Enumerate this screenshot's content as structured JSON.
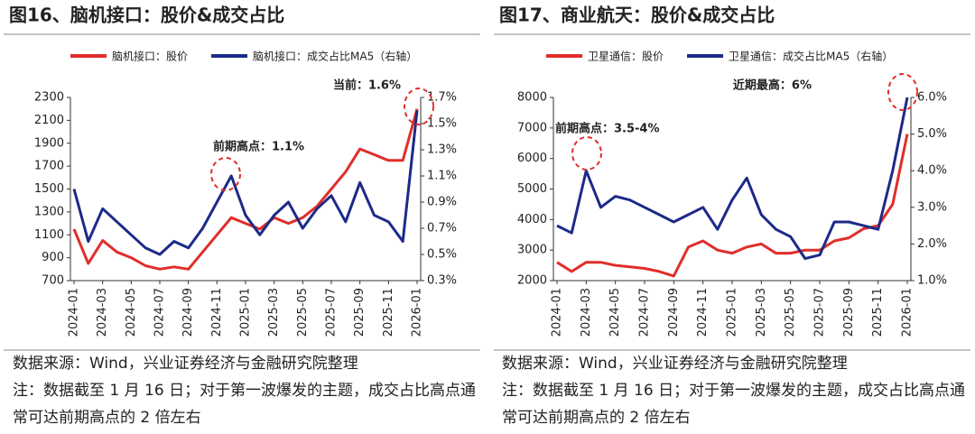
{
  "chart_data": [
    {
      "type": "line",
      "title": "图16、脑机接口：股价&成交占比",
      "x": [
        "2024-01",
        "2024-02",
        "2024-03",
        "2024-04",
        "2024-05",
        "2024-06",
        "2024-07",
        "2024-08",
        "2024-09",
        "2024-10",
        "2024-11",
        "2024-12",
        "2025-01",
        "2025-02",
        "2025-03",
        "2025-04",
        "2025-05",
        "2025-06",
        "2025-07",
        "2025-08",
        "2025-09",
        "2025-10",
        "2025-11",
        "2025-12",
        "2026-01"
      ],
      "xticks": [
        "2024-01",
        "2024-03",
        "2024-05",
        "2024-07",
        "2024-09",
        "2024-11",
        "2025-01",
        "2025-03",
        "2025-05",
        "2025-07",
        "2025-09",
        "2025-11",
        "2026-01"
      ],
      "series": [
        {
          "name": "脑机接口：股价",
          "color": "#e02e2a",
          "values": [
            1150,
            850,
            1050,
            950,
            900,
            830,
            800,
            820,
            800,
            950,
            1100,
            1250,
            1200,
            1150,
            1250,
            1200,
            1250,
            1350,
            1500,
            1650,
            1850,
            1800,
            1750,
            1750,
            2200
          ]
        },
        {
          "name": "脑机接口：成交占比MA5（右轴）",
          "color": "#1c2a88",
          "axis": "y2",
          "values": [
            1.0,
            0.6,
            0.85,
            0.75,
            0.65,
            0.55,
            0.5,
            0.6,
            0.55,
            0.7,
            0.9,
            1.1,
            0.8,
            0.65,
            0.8,
            0.9,
            0.7,
            0.85,
            0.95,
            0.75,
            1.05,
            0.8,
            0.75,
            0.6,
            1.6
          ]
        }
      ],
      "ylim": [
        700,
        2300
      ],
      "yticks": [
        700,
        900,
        1100,
        1300,
        1500,
        1700,
        1900,
        2100,
        2300
      ],
      "y2lim": [
        0.3,
        1.7
      ],
      "y2ticks": [
        {
          "value": 0.3,
          "label": "0.3%"
        },
        {
          "value": 0.5,
          "label": "0.5%"
        },
        {
          "value": 0.7,
          "label": "0.7%"
        },
        {
          "value": 0.9,
          "label": "0.9%"
        },
        {
          "value": 1.1,
          "label": "1.1%"
        },
        {
          "value": 1.3,
          "label": "1.3%"
        },
        {
          "value": 1.5,
          "label": "1.5%"
        },
        {
          "value": 1.7,
          "label": "1.7%"
        }
      ],
      "annotations": [
        "前期高点：1.1%",
        "当前：1.6%"
      ],
      "source": "数据来源：Wind，兴业证券经济与金融研究院整理",
      "note": "注：数据截至 1 月 16 日；对于第一波爆发的主题，成交占比高点通常可达前期高点的 2 倍左右"
    },
    {
      "type": "line",
      "title": "图17、商业航天：股价&成交占比",
      "x": [
        "2024-01",
        "2024-02",
        "2024-03",
        "2024-04",
        "2024-05",
        "2024-06",
        "2024-07",
        "2024-08",
        "2024-09",
        "2024-10",
        "2024-11",
        "2024-12",
        "2025-01",
        "2025-02",
        "2025-03",
        "2025-04",
        "2025-05",
        "2025-06",
        "2025-07",
        "2025-08",
        "2025-09",
        "2025-10",
        "2025-11",
        "2025-12",
        "2026-01"
      ],
      "xticks": [
        "2024-01",
        "2024-03",
        "2024-05",
        "2024-07",
        "2024-09",
        "2024-11",
        "2025-01",
        "2025-03",
        "2025-05",
        "2025-07",
        "2025-09",
        "2025-11",
        "2026-01"
      ],
      "series": [
        {
          "name": "卫星通信：股价",
          "color": "#e02e2a",
          "values": [
            2600,
            2300,
            2600,
            2600,
            2500,
            2450,
            2400,
            2300,
            2150,
            3100,
            3300,
            3000,
            2900,
            3100,
            3200,
            2900,
            2900,
            3000,
            3000,
            3300,
            3400,
            3700,
            3800,
            4500,
            6800
          ]
        },
        {
          "name": "卫星通信：成交占比MA5（右轴）",
          "color": "#1c2a88",
          "axis": "y2",
          "values": [
            2.5,
            2.3,
            4.0,
            3.0,
            3.3,
            3.2,
            3.0,
            2.8,
            2.6,
            2.8,
            3.0,
            2.4,
            3.2,
            3.8,
            2.8,
            2.4,
            2.2,
            1.6,
            1.7,
            2.6,
            2.6,
            2.5,
            2.4,
            4.0,
            6.0
          ]
        }
      ],
      "ylim": [
        2000,
        8000
      ],
      "yticks": [
        2000,
        3000,
        4000,
        5000,
        6000,
        7000,
        8000
      ],
      "y2lim": [
        1,
        6
      ],
      "y2ticks": [
        {
          "value": 1,
          "label": "1.0%"
        },
        {
          "value": 2,
          "label": "2.0%"
        },
        {
          "value": 3,
          "label": "3.0%"
        },
        {
          "value": 4,
          "label": "4.0%"
        },
        {
          "value": 5,
          "label": "5.0%"
        },
        {
          "value": 6,
          "label": "6.0%"
        }
      ],
      "annotations": [
        "前期高点：3.5-4%",
        "近期最高：6%"
      ],
      "source": "数据来源：Wind，兴业证券经济与金融研究院整理",
      "note": "注：数据截至 1 月 16 日；对于第一波爆发的主题，成交占比高点通常可达前期高点的 2 倍左右"
    }
  ]
}
